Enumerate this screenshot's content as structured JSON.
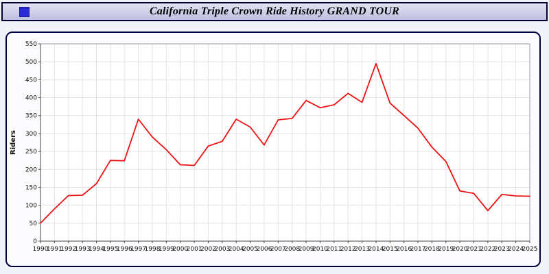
{
  "header": {
    "title": "California Triple Crown Ride History GRAND TOUR"
  },
  "icons": {
    "blue_square": "blue-square-icon"
  },
  "colors": {
    "line": "#ee1111",
    "panel_border": "#000040",
    "header_border": "#000033",
    "grid": "#e2e2e9"
  },
  "chart_data": {
    "type": "line",
    "title": "California Triple Crown Ride History GRAND TOUR",
    "xlabel": "",
    "ylabel": "Riders",
    "ylim": [
      0,
      550
    ],
    "ytick_step": 50,
    "grid": true,
    "legend_position": "none",
    "x": [
      1990,
      1991,
      1992,
      1993,
      1994,
      1995,
      1996,
      1997,
      1998,
      1999,
      2000,
      2001,
      2002,
      2003,
      2004,
      2005,
      2006,
      2007,
      2008,
      2009,
      2010,
      2011,
      2012,
      2013,
      2014,
      2015,
      2016,
      2017,
      2018,
      2019,
      2020,
      2021,
      2022,
      2023,
      2024,
      2025
    ],
    "series": [
      {
        "name": "Riders",
        "color": "#ee1111",
        "values": [
          50,
          90,
          127,
          128,
          160,
          225,
          224,
          340,
          290,
          255,
          213,
          211,
          265,
          278,
          340,
          318,
          268,
          338,
          342,
          392,
          372,
          380,
          412,
          387,
          495,
          385,
          350,
          315,
          262,
          222,
          140,
          133,
          85,
          130,
          126,
          125
        ]
      }
    ]
  }
}
